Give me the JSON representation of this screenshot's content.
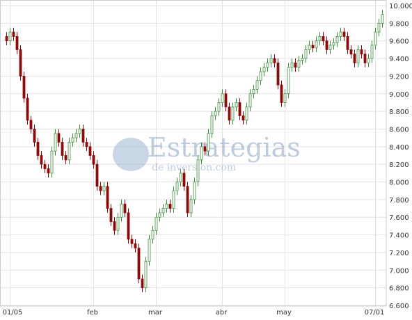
{
  "chart_data": {
    "type": "candlestick",
    "watermark": {
      "title": "Estrategias",
      "subtitle": "de inversion.com"
    },
    "categories": [
      null,
      "01/05",
      null,
      null,
      null,
      null,
      null,
      null,
      null,
      null,
      null,
      null,
      null,
      null,
      null,
      null,
      null,
      null,
      null,
      null,
      null,
      null,
      null,
      null,
      null,
      "feb",
      null,
      null,
      null,
      null,
      null,
      null,
      null,
      null,
      null,
      null,
      null,
      null,
      null,
      null,
      null,
      null,
      null,
      "mar",
      null,
      null,
      null,
      null,
      null,
      null,
      null,
      null,
      null,
      null,
      null,
      null,
      null,
      null,
      null,
      null,
      null,
      null,
      "abr",
      null,
      null,
      null,
      null,
      null,
      null,
      null,
      null,
      null,
      null,
      null,
      null,
      null,
      null,
      null,
      null,
      null,
      "may",
      null,
      null,
      null,
      null,
      null,
      null,
      null,
      null,
      null,
      null,
      null,
      null,
      null,
      null,
      null,
      null,
      null,
      null,
      null,
      null,
      null,
      null,
      null,
      null,
      null,
      "07/01",
      null,
      null
    ],
    "open": [
      9650,
      9600,
      9700,
      9650,
      9500,
      9200,
      8950,
      8700,
      8600,
      8450,
      8300,
      8200,
      8150,
      8100,
      8350,
      8550,
      8450,
      8300,
      8250,
      8450,
      8500,
      8550,
      8600,
      8450,
      8400,
      8300,
      8200,
      7950,
      7900,
      7950,
      7700,
      7550,
      7450,
      7600,
      7750,
      7650,
      7350,
      7300,
      7250,
      6900,
      6800,
      7100,
      7350,
      7450,
      7600,
      7650,
      7700,
      7750,
      7700,
      7900,
      8000,
      8100,
      7950,
      7650,
      7800,
      8000,
      8250,
      8400,
      8350,
      8550,
      8750,
      8800,
      8900,
      9000,
      8850,
      8700,
      8850,
      8900,
      8750,
      8700,
      8850,
      9000,
      9050,
      9150,
      9250,
      9300,
      9350,
      9400,
      9350,
      9100,
      8900,
      9000,
      9300,
      9350,
      9300,
      9380,
      9400,
      9500,
      9550,
      9520,
      9600,
      9650,
      9600,
      9500,
      9550,
      9580,
      9650,
      9700,
      9650,
      9500,
      9450,
      9350,
      9500,
      9450,
      9350,
      9400,
      9550,
      9700,
      9800
    ],
    "high": [
      9700,
      9750,
      9750,
      9700,
      9550,
      9250,
      9000,
      8750,
      8650,
      8500,
      8350,
      8250,
      8200,
      8400,
      8600,
      8600,
      8500,
      8350,
      8500,
      8550,
      8600,
      8650,
      8650,
      8500,
      8450,
      8350,
      8250,
      8000,
      8000,
      8000,
      7750,
      7600,
      7650,
      7800,
      7800,
      7700,
      7400,
      7350,
      7300,
      6950,
      7150,
      7400,
      7500,
      7650,
      7700,
      7750,
      7800,
      7800,
      7950,
      8050,
      8150,
      8150,
      8000,
      7850,
      8050,
      8300,
      8450,
      8450,
      8600,
      8800,
      8850,
      8950,
      9050,
      9050,
      8900,
      8900,
      8950,
      8950,
      8800,
      8900,
      9050,
      9100,
      9200,
      9300,
      9350,
      9400,
      9450,
      9450,
      9400,
      9150,
      9050,
      9350,
      9400,
      9400,
      9430,
      9450,
      9550,
      9600,
      9600,
      9650,
      9700,
      9700,
      9650,
      9600,
      9630,
      9700,
      9750,
      9750,
      9700,
      9550,
      9500,
      9550,
      9550,
      9500,
      9450,
      9600,
      9750,
      9850,
      9950
    ],
    "low": [
      9550,
      9550,
      9600,
      9450,
      9150,
      8900,
      8650,
      8550,
      8400,
      8250,
      8150,
      8100,
      8050,
      8050,
      8300,
      8400,
      8250,
      8200,
      8200,
      8400,
      8450,
      8500,
      8400,
      8350,
      8250,
      8150,
      7900,
      7850,
      7850,
      7650,
      7500,
      7400,
      7400,
      7550,
      7600,
      7300,
      7250,
      7200,
      6850,
      6750,
      6750,
      7050,
      7300,
      7400,
      7550,
      7600,
      7650,
      7650,
      7650,
      7850,
      7950,
      7900,
      7600,
      7600,
      7750,
      7950,
      8200,
      8300,
      8300,
      8500,
      8700,
      8750,
      8850,
      8800,
      8650,
      8650,
      8800,
      8700,
      8650,
      8650,
      8800,
      8950,
      9000,
      9100,
      9200,
      9250,
      9300,
      9300,
      9050,
      8850,
      8850,
      8950,
      9250,
      9250,
      9250,
      9330,
      9350,
      9450,
      9470,
      9470,
      9550,
      9550,
      9450,
      9450,
      9500,
      9530,
      9600,
      9600,
      9450,
      9400,
      9300,
      9300,
      9400,
      9300,
      9300,
      9350,
      9500,
      9650,
      9750
    ],
    "close": [
      9600,
      9700,
      9650,
      9500,
      9200,
      8950,
      8700,
      8600,
      8450,
      8300,
      8200,
      8150,
      8100,
      8350,
      8550,
      8450,
      8300,
      8250,
      8450,
      8500,
      8550,
      8600,
      8450,
      8400,
      8300,
      8200,
      7950,
      7900,
      7950,
      7700,
      7550,
      7450,
      7600,
      7750,
      7650,
      7350,
      7300,
      7250,
      6900,
      6800,
      7100,
      7350,
      7450,
      7600,
      7650,
      7700,
      7750,
      7700,
      7900,
      8000,
      8100,
      7950,
      7650,
      7800,
      8000,
      8250,
      8400,
      8350,
      8550,
      8750,
      8800,
      8900,
      9000,
      8850,
      8700,
      8850,
      8900,
      8750,
      8700,
      8850,
      9000,
      9050,
      9150,
      9250,
      9300,
      9350,
      9400,
      9350,
      9100,
      8900,
      9000,
      9300,
      9350,
      9300,
      9380,
      9400,
      9500,
      9550,
      9520,
      9600,
      9650,
      9600,
      9500,
      9550,
      9580,
      9650,
      9700,
      9650,
      9500,
      9450,
      9350,
      9500,
      9450,
      9350,
      9400,
      9550,
      9700,
      9800,
      9900
    ],
    "up_color": "#3c8c3c",
    "down_color": "#8b0a0a",
    "ylim": [
      6600,
      10000
    ],
    "yticks": [
      {
        "value": 6600,
        "label": "6.600"
      },
      {
        "value": 6800,
        "label": "6.800"
      },
      {
        "value": 7000,
        "label": "7.000"
      },
      {
        "value": 7200,
        "label": "7.200"
      },
      {
        "value": 7400,
        "label": "7.400"
      },
      {
        "value": 7600,
        "label": "7.600"
      },
      {
        "value": 7800,
        "label": "7.800"
      },
      {
        "value": 8000,
        "label": "8.000"
      },
      {
        "value": 8200,
        "label": "8.200"
      },
      {
        "value": 8400,
        "label": "8.400"
      },
      {
        "value": 8600,
        "label": "8.600"
      },
      {
        "value": 8800,
        "label": "8.800"
      },
      {
        "value": 9000,
        "label": "9.000"
      },
      {
        "value": 9200,
        "label": "9.200"
      },
      {
        "value": 9400,
        "label": "9.400"
      },
      {
        "value": 9600,
        "label": "9.600"
      },
      {
        "value": 9800,
        "label": "9.800"
      },
      {
        "value": 10000,
        "label": "10.000"
      }
    ],
    "grid": true
  }
}
